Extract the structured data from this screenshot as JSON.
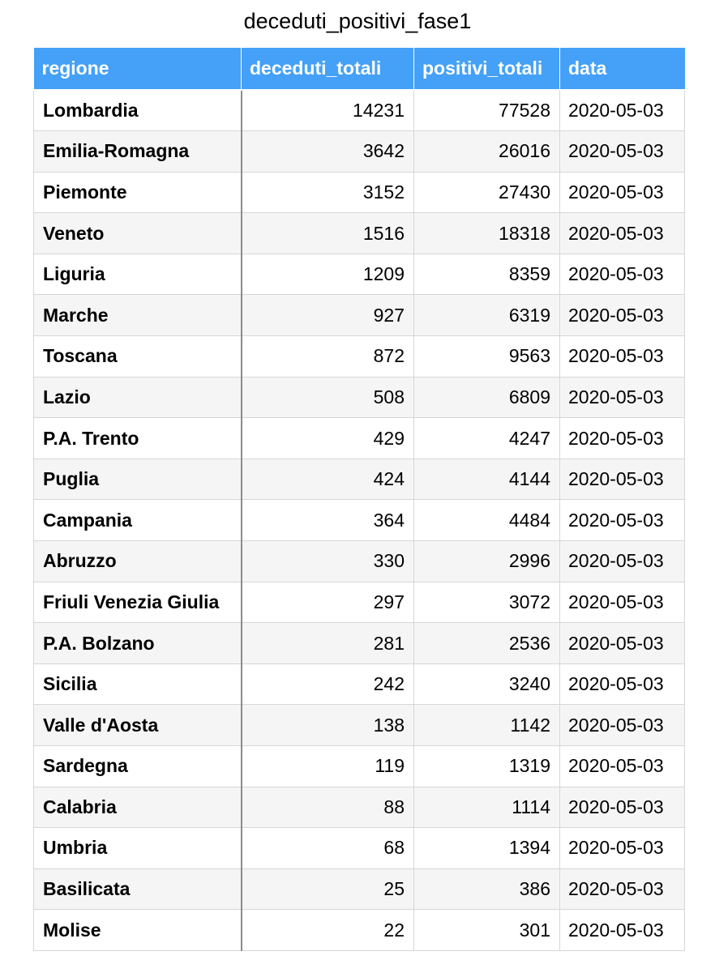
{
  "title": "deceduti_positivi_fase1",
  "columns": [
    "regione",
    "deceduti_totali",
    "positivi_totali",
    "data"
  ],
  "rows": [
    {
      "regione": "Lombardia",
      "deceduti_totali": "14231",
      "positivi_totali": "77528",
      "data": "2020-05-03"
    },
    {
      "regione": "Emilia-Romagna",
      "deceduti_totali": "3642",
      "positivi_totali": "26016",
      "data": "2020-05-03"
    },
    {
      "regione": "Piemonte",
      "deceduti_totali": "3152",
      "positivi_totali": "27430",
      "data": "2020-05-03"
    },
    {
      "regione": "Veneto",
      "deceduti_totali": "1516",
      "positivi_totali": "18318",
      "data": "2020-05-03"
    },
    {
      "regione": "Liguria",
      "deceduti_totali": "1209",
      "positivi_totali": "8359",
      "data": "2020-05-03"
    },
    {
      "regione": "Marche",
      "deceduti_totali": "927",
      "positivi_totali": "6319",
      "data": "2020-05-03"
    },
    {
      "regione": "Toscana",
      "deceduti_totali": "872",
      "positivi_totali": "9563",
      "data": "2020-05-03"
    },
    {
      "regione": "Lazio",
      "deceduti_totali": "508",
      "positivi_totali": "6809",
      "data": "2020-05-03"
    },
    {
      "regione": "P.A. Trento",
      "deceduti_totali": "429",
      "positivi_totali": "4247",
      "data": "2020-05-03"
    },
    {
      "regione": "Puglia",
      "deceduti_totali": "424",
      "positivi_totali": "4144",
      "data": "2020-05-03"
    },
    {
      "regione": "Campania",
      "deceduti_totali": "364",
      "positivi_totali": "4484",
      "data": "2020-05-03"
    },
    {
      "regione": "Abruzzo",
      "deceduti_totali": "330",
      "positivi_totali": "2996",
      "data": "2020-05-03"
    },
    {
      "regione": "Friuli Venezia Giulia",
      "deceduti_totali": "297",
      "positivi_totali": "3072",
      "data": "2020-05-03"
    },
    {
      "regione": "P.A. Bolzano",
      "deceduti_totali": "281",
      "positivi_totali": "2536",
      "data": "2020-05-03"
    },
    {
      "regione": "Sicilia",
      "deceduti_totali": "242",
      "positivi_totali": "3240",
      "data": "2020-05-03"
    },
    {
      "regione": "Valle d'Aosta",
      "deceduti_totali": "138",
      "positivi_totali": "1142",
      "data": "2020-05-03"
    },
    {
      "regione": "Sardegna",
      "deceduti_totali": "119",
      "positivi_totali": "1319",
      "data": "2020-05-03"
    },
    {
      "regione": "Calabria",
      "deceduti_totali": "88",
      "positivi_totali": "1114",
      "data": "2020-05-03"
    },
    {
      "regione": "Umbria",
      "deceduti_totali": "68",
      "positivi_totali": "1394",
      "data": "2020-05-03"
    },
    {
      "regione": "Basilicata",
      "deceduti_totali": "25",
      "positivi_totali": "386",
      "data": "2020-05-03"
    },
    {
      "regione": "Molise",
      "deceduti_totali": "22",
      "positivi_totali": "301",
      "data": "2020-05-03"
    }
  ],
  "colors": {
    "header_bg": "#44a1f7",
    "header_text": "#ffffff",
    "stripe": "#f5f5f5",
    "border": "#d6d6d6"
  }
}
